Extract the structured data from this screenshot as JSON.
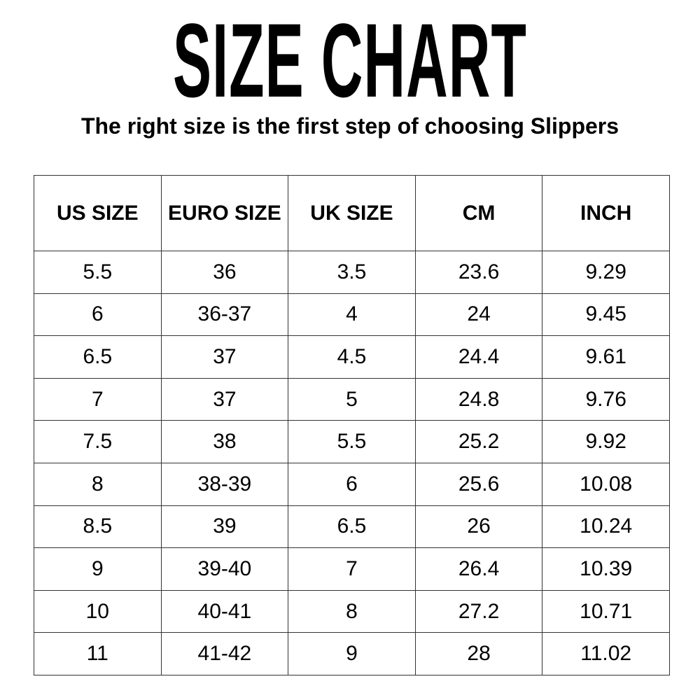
{
  "title": "SIZE CHART",
  "subtitle": "The right size is the first step of choosing Slippers",
  "table": {
    "headers": [
      "US SIZE",
      "EURO SIZE",
      "UK SIZE",
      "CM",
      "INCH"
    ],
    "rows": [
      [
        "5.5",
        "36",
        "3.5",
        "23.6",
        "9.29"
      ],
      [
        "6",
        "36-37",
        "4",
        "24",
        "9.45"
      ],
      [
        "6.5",
        "37",
        "4.5",
        "24.4",
        "9.61"
      ],
      [
        "7",
        "37",
        "5",
        "24.8",
        "9.76"
      ],
      [
        "7.5",
        "38",
        "5.5",
        "25.2",
        "9.92"
      ],
      [
        "8",
        "38-39",
        "6",
        "25.6",
        "10.08"
      ],
      [
        "8.5",
        "39",
        "6.5",
        "26",
        "10.24"
      ],
      [
        "9",
        "39-40",
        "7",
        "26.4",
        "10.39"
      ],
      [
        "10",
        "40-41",
        "8",
        "27.2",
        "10.71"
      ],
      [
        "11",
        "41-42",
        "9",
        "28",
        "11.02"
      ]
    ]
  }
}
